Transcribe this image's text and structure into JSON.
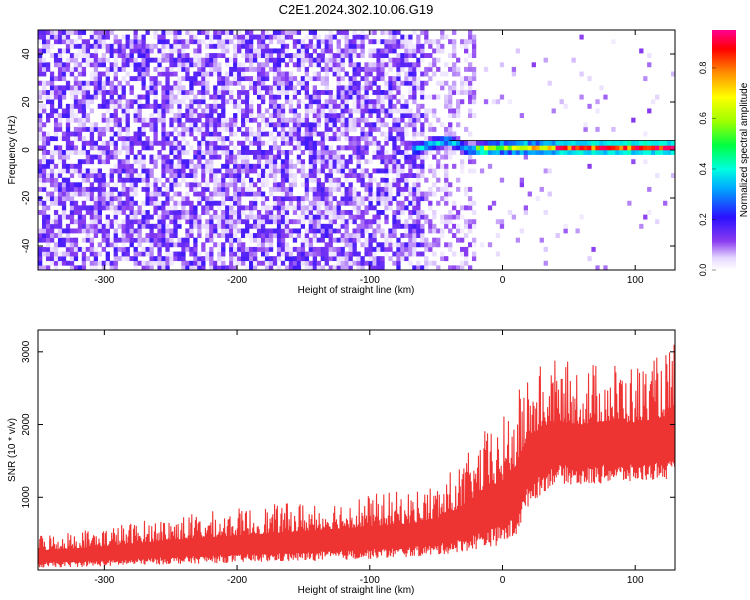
{
  "title": "C2E1.2024.302.10.06.G19",
  "chart_data": [
    {
      "type": "heatmap",
      "title": "C2E1.2024.302.10.06.G19",
      "xlabel": "Height of straight line (km)",
      "ylabel": "Frequency (Hz)",
      "xlim": [
        -350,
        130
      ],
      "ylim": [
        -50,
        50
      ],
      "xticks": [
        -300,
        -200,
        -100,
        0,
        100
      ],
      "xtick_labels": [
        "-300",
        "-200",
        "-100",
        "0",
        "100"
      ],
      "yticks": [
        -40,
        -20,
        0,
        20,
        40
      ],
      "ytick_labels": [
        "-40",
        "-20",
        "0",
        "20",
        "40"
      ],
      "colorbar": {
        "label": "Normalized spectral amplitude",
        "range": [
          0,
          0.95
        ],
        "ticks": [
          0,
          0.2,
          0.4,
          0.6,
          0.8
        ],
        "tick_labels": [
          "0.0",
          "0.2",
          "0.4",
          "0.6",
          "0.8"
        ],
        "colormap": "rainbow"
      },
      "description_values": {
        "noise_region_x": [
          -350,
          -20
        ],
        "signal_start_x": -68,
        "signal_center_freq_hz": [
          [
            -68,
            0
          ],
          [
            -50,
            3
          ],
          [
            -40,
            4
          ],
          [
            -25,
            0
          ],
          [
            0,
            1
          ],
          [
            50,
            1
          ],
          [
            100,
            1
          ],
          [
            130,
            1
          ]
        ],
        "noise_amplitude": [
          0,
          0.15
        ]
      },
      "grid": false
    },
    {
      "type": "line",
      "title": "",
      "xlabel": "Height of straight line (km)",
      "ylabel": "SNR (10 * v/v)",
      "xlim": [
        -350,
        130
      ],
      "ylim": [
        0,
        3300
      ],
      "xticks": [
        -300,
        -200,
        -100,
        0,
        100
      ],
      "xtick_labels": [
        "-300",
        "-200",
        "-100",
        "0",
        "100"
      ],
      "yticks": [
        1000,
        2000,
        3000
      ],
      "ytick_labels": [
        "1000",
        "2000",
        "3000"
      ],
      "series": [
        {
          "color": "#ee3333",
          "envelope": {
            "x": [
              -350,
              -300,
              -250,
              -200,
              -150,
              -100,
              -70,
              -50,
              -30,
              -15,
              0,
              10,
              20,
              40,
              60,
              80,
              100,
              120,
              130
            ],
            "lower": [
              30,
              50,
              80,
              100,
              120,
              150,
              180,
              200,
              250,
              300,
              350,
              450,
              900,
              1200,
              1150,
              1200,
              1200,
              1250,
              1200
            ],
            "upper": [
              500,
              600,
              750,
              850,
              950,
              1050,
              1100,
              1200,
              1500,
              1900,
              2100,
              2400,
              2800,
              2900,
              2850,
              2900,
              2850,
              2950,
              3150
            ]
          }
        }
      ],
      "grid": false
    }
  ]
}
